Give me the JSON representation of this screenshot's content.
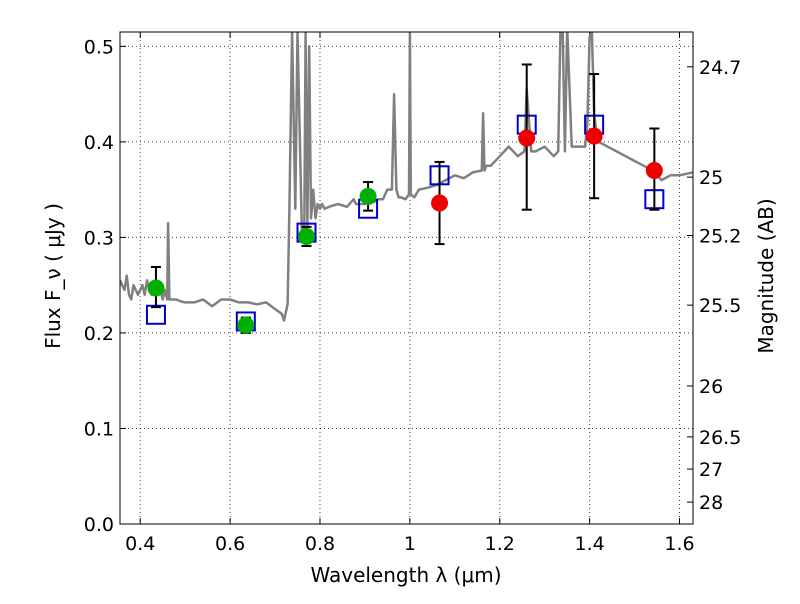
{
  "chart_data": {
    "type": "scatter",
    "xlabel": "Wavelength  λ (μm)",
    "ylabel": "Flux  F_ν ( μJy )",
    "ylabel_right": "Magnitude (AB)",
    "xlim": [
      0.355,
      1.63
    ],
    "ylim": [
      0.0,
      0.515
    ],
    "grid": true,
    "x_ticks": [
      0.4,
      0.6,
      0.8,
      1.0,
      1.2,
      1.4,
      1.6
    ],
    "x_tick_labels": [
      "0.4",
      "0.6",
      "0.8",
      "1",
      "1.2",
      "1.4",
      "1.6"
    ],
    "y_ticks": [
      0.0,
      0.1,
      0.2,
      0.3,
      0.4,
      0.5
    ],
    "y_tick_labels": [
      "0.0",
      "0.1",
      "0.2",
      "0.3",
      "0.4",
      "0.5"
    ],
    "right_ticks": [
      {
        "flux": 0.4786,
        "label": "24.7"
      },
      {
        "flux": 0.3631,
        "label": "25"
      },
      {
        "flux": 0.302,
        "label": "25.2"
      },
      {
        "flux": 0.2291,
        "label": "25.5"
      },
      {
        "flux": 0.1445,
        "label": "26"
      },
      {
        "flux": 0.0912,
        "label": "26.5"
      },
      {
        "flux": 0.0575,
        "label": "27"
      },
      {
        "flux": 0.0229,
        "label": "28"
      }
    ],
    "series": [
      {
        "kind": "line",
        "color": "#808080",
        "x": [
          0.355,
          0.36,
          0.365,
          0.37,
          0.375,
          0.38,
          0.385,
          0.39,
          0.395,
          0.4,
          0.405,
          0.41,
          0.415,
          0.42,
          0.425,
          0.43,
          0.435,
          0.44,
          0.445,
          0.45,
          0.455,
          0.46,
          0.462,
          0.465,
          0.47,
          0.48,
          0.49,
          0.5,
          0.52,
          0.54,
          0.56,
          0.58,
          0.6,
          0.62,
          0.64,
          0.66,
          0.68,
          0.7,
          0.715,
          0.72,
          0.728,
          0.732,
          0.738,
          0.745,
          0.75,
          0.76,
          0.765,
          0.768,
          0.772,
          0.776,
          0.78,
          0.785,
          0.79,
          0.795,
          0.8,
          0.805,
          0.81,
          0.82,
          0.84,
          0.86,
          0.875,
          0.88,
          0.89,
          0.9,
          0.91,
          0.92,
          0.93,
          0.94,
          0.95,
          0.96,
          0.965,
          0.97,
          0.975,
          0.98,
          0.99,
          0.998,
          1.0,
          1.002,
          1.01,
          1.02,
          1.04,
          1.06,
          1.08,
          1.1,
          1.12,
          1.14,
          1.16,
          1.163,
          1.166,
          1.17,
          1.18,
          1.2,
          1.22,
          1.24,
          1.255,
          1.26,
          1.27,
          1.28,
          1.3,
          1.32,
          1.33,
          1.335,
          1.34,
          1.345,
          1.35,
          1.36,
          1.38,
          1.39,
          1.395,
          1.4,
          1.405,
          1.41,
          1.415,
          1.42,
          1.44,
          1.46,
          1.48,
          1.5,
          1.52,
          1.54,
          1.56,
          1.58,
          1.6,
          1.63
        ],
        "y": [
          0.255,
          0.25,
          0.245,
          0.26,
          0.24,
          0.235,
          0.25,
          0.245,
          0.24,
          0.245,
          0.25,
          0.24,
          0.255,
          0.245,
          0.24,
          0.24,
          0.245,
          0.24,
          0.245,
          0.235,
          0.245,
          0.235,
          0.315,
          0.235,
          0.235,
          0.235,
          0.233,
          0.232,
          0.232,
          0.235,
          0.228,
          0.235,
          0.235,
          0.232,
          0.232,
          0.23,
          0.232,
          0.225,
          0.22,
          0.213,
          0.23,
          0.33,
          0.515,
          0.33,
          0.515,
          0.3,
          0.31,
          0.515,
          0.31,
          0.5,
          0.32,
          0.35,
          0.32,
          0.335,
          0.33,
          0.335,
          0.33,
          0.332,
          0.335,
          0.332,
          0.34,
          0.335,
          0.335,
          0.335,
          0.34,
          0.337,
          0.34,
          0.34,
          0.35,
          0.35,
          0.45,
          0.35,
          0.342,
          0.342,
          0.34,
          0.345,
          0.515,
          0.345,
          0.342,
          0.35,
          0.352,
          0.355,
          0.36,
          0.365,
          0.362,
          0.368,
          0.37,
          0.43,
          0.37,
          0.375,
          0.375,
          0.385,
          0.395,
          0.385,
          0.39,
          0.455,
          0.39,
          0.39,
          0.395,
          0.385,
          0.39,
          0.515,
          0.515,
          0.39,
          0.52,
          0.395,
          0.395,
          0.395,
          0.42,
          0.51,
          0.515,
          0.43,
          0.41,
          0.4,
          0.395,
          0.39,
          0.385,
          0.38,
          0.375,
          0.37,
          0.36,
          0.365,
          0.365,
          0.368
        ]
      },
      {
        "kind": "open-square",
        "color": "#0000cc",
        "x": [
          0.435,
          0.635,
          0.77,
          0.907,
          1.066,
          1.26,
          1.41,
          1.544
        ],
        "y": [
          0.219,
          0.212,
          0.305,
          0.33,
          0.365,
          0.418,
          0.418,
          0.34
        ]
      },
      {
        "kind": "filled-circle",
        "color": "#00b000",
        "x": [
          0.435,
          0.635,
          0.77,
          0.907
        ],
        "y": [
          0.247,
          0.208,
          0.301,
          0.343
        ],
        "err_low": [
          0.02,
          0.008,
          0.01,
          0.015
        ],
        "err_high": [
          0.022,
          0.008,
          0.01,
          0.015
        ]
      },
      {
        "kind": "filled-circle",
        "color": "#ee0000",
        "x": [
          1.066,
          1.26,
          1.41,
          1.544
        ],
        "y": [
          0.336,
          0.404,
          0.406,
          0.37
        ],
        "err_low": [
          0.043,
          0.075,
          0.065,
          0.041
        ],
        "err_high": [
          0.043,
          0.077,
          0.065,
          0.044
        ]
      }
    ]
  }
}
